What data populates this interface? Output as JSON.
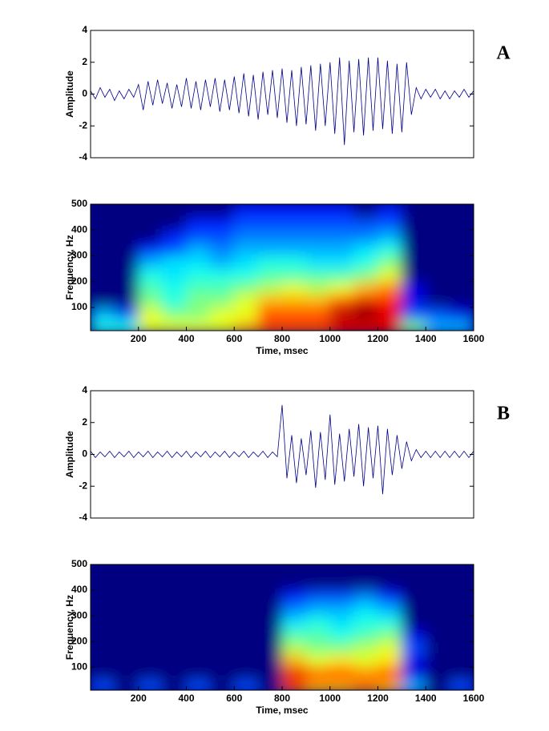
{
  "chart_data": [
    {
      "type": "line",
      "annotation": "A",
      "ylabel": "Amplitude",
      "color": "#00008b",
      "xlim": [
        0,
        1600
      ],
      "ylim": [
        -4,
        4
      ],
      "yticks": [
        -4,
        -2,
        0,
        2,
        4
      ],
      "x": [
        0,
        20,
        40,
        60,
        80,
        100,
        120,
        140,
        160,
        180,
        200,
        220,
        240,
        260,
        280,
        300,
        320,
        340,
        360,
        380,
        400,
        420,
        440,
        460,
        480,
        500,
        520,
        540,
        560,
        580,
        600,
        620,
        640,
        660,
        680,
        700,
        720,
        740,
        760,
        780,
        800,
        820,
        840,
        860,
        880,
        900,
        920,
        940,
        960,
        980,
        1000,
        1020,
        1040,
        1060,
        1080,
        1100,
        1120,
        1140,
        1160,
        1180,
        1200,
        1220,
        1240,
        1260,
        1280,
        1300,
        1320,
        1340,
        1360,
        1380,
        1400,
        1420,
        1440,
        1460,
        1480,
        1500,
        1520,
        1540,
        1560,
        1580,
        1600
      ],
      "values": [
        0.2,
        -0.3,
        0.4,
        -0.2,
        0.3,
        -0.4,
        0.2,
        -0.3,
        0.3,
        -0.2,
        0.6,
        -1.0,
        0.8,
        -0.7,
        0.9,
        -0.6,
        0.7,
        -0.9,
        0.6,
        -0.8,
        1.0,
        -0.9,
        0.8,
        -1.0,
        0.9,
        -0.8,
        1.0,
        -1.1,
        0.9,
        -1.0,
        1.1,
        -1.2,
        1.3,
        -1.4,
        1.2,
        -1.6,
        1.4,
        -1.3,
        1.5,
        -1.5,
        1.6,
        -1.8,
        1.5,
        -2.0,
        1.7,
        -1.9,
        1.8,
        -2.3,
        1.9,
        -2.0,
        2.0,
        -2.5,
        2.3,
        -3.2,
        2.1,
        -2.4,
        2.2,
        -2.6,
        2.3,
        -2.3,
        2.3,
        -2.2,
        2.1,
        -2.5,
        1.9,
        -2.4,
        2.0,
        -1.3,
        0.4,
        -0.3,
        0.3,
        -0.2,
        0.3,
        -0.3,
        0.2,
        -0.3,
        0.2,
        -0.2,
        0.3,
        -0.2,
        0.2
      ]
    },
    {
      "type": "heatmap",
      "colormap": "jet",
      "xlabel": "Time, msec",
      "ylabel": "Frequency, Hz",
      "xlim": [
        0,
        1600
      ],
      "ylim": [
        10,
        500
      ],
      "xticks": [
        200,
        400,
        600,
        800,
        1000,
        1200,
        1400,
        1600
      ],
      "yticks": [
        100,
        200,
        300,
        400,
        500
      ],
      "x": [
        50,
        150,
        250,
        350,
        450,
        550,
        650,
        750,
        850,
        950,
        1050,
        1150,
        1250,
        1350,
        1450,
        1550
      ],
      "y": [
        25,
        75,
        125,
        175,
        225,
        275,
        325,
        375,
        425,
        475
      ],
      "z": [
        [
          0.4,
          0.4,
          0.6,
          0.6,
          0.6,
          0.6,
          0.7,
          0.8,
          0.8,
          0.8,
          0.9,
          0.9,
          0.9,
          0.5,
          0.3,
          0.3
        ],
        [
          0.3,
          0.2,
          0.6,
          0.5,
          0.5,
          0.6,
          0.6,
          0.8,
          0.8,
          0.8,
          0.95,
          1.0,
          0.9,
          0.2,
          0.2,
          0.1
        ],
        [
          0,
          0,
          0.5,
          0.4,
          0.5,
          0.5,
          0.6,
          0.7,
          0.7,
          0.7,
          0.8,
          0.9,
          0.85,
          0.1,
          0,
          0
        ],
        [
          0,
          0,
          0.45,
          0.4,
          0.45,
          0.45,
          0.5,
          0.55,
          0.6,
          0.55,
          0.6,
          0.7,
          0.75,
          0.1,
          0,
          0
        ],
        [
          0,
          0,
          0.4,
          0.35,
          0.4,
          0.4,
          0.4,
          0.45,
          0.45,
          0.45,
          0.45,
          0.5,
          0.6,
          0,
          0,
          0
        ],
        [
          0,
          0,
          0.3,
          0.35,
          0.35,
          0.3,
          0.35,
          0.4,
          0.4,
          0.35,
          0.35,
          0.4,
          0.5,
          0,
          0,
          0
        ],
        [
          0,
          0,
          0.15,
          0.2,
          0.3,
          0.25,
          0.3,
          0.3,
          0.3,
          0.3,
          0.3,
          0.35,
          0.4,
          0,
          0,
          0
        ],
        [
          0,
          0,
          0,
          0.15,
          0.2,
          0.2,
          0.25,
          0.25,
          0.25,
          0.25,
          0.25,
          0.25,
          0.3,
          0,
          0,
          0
        ],
        [
          0,
          0,
          0,
          0,
          0.15,
          0.15,
          0.2,
          0.2,
          0.2,
          0.2,
          0.2,
          0.2,
          0.2,
          0,
          0,
          0
        ],
        [
          0,
          0,
          0,
          0,
          0,
          0,
          0.15,
          0.15,
          0.15,
          0.15,
          0.15,
          0,
          0.15,
          0,
          0,
          0
        ]
      ]
    },
    {
      "type": "line",
      "annotation": "B",
      "ylabel": "Amplitude",
      "color": "#00008b",
      "xlim": [
        0,
        1600
      ],
      "ylim": [
        -4,
        4
      ],
      "yticks": [
        -4,
        -2,
        0,
        2,
        4
      ],
      "x": [
        0,
        20,
        40,
        60,
        80,
        100,
        120,
        140,
        160,
        180,
        200,
        220,
        240,
        260,
        280,
        300,
        320,
        340,
        360,
        380,
        400,
        420,
        440,
        460,
        480,
        500,
        520,
        540,
        560,
        580,
        600,
        620,
        640,
        660,
        680,
        700,
        720,
        740,
        760,
        780,
        800,
        820,
        840,
        860,
        880,
        900,
        920,
        940,
        960,
        980,
        1000,
        1020,
        1040,
        1060,
        1080,
        1100,
        1120,
        1140,
        1160,
        1180,
        1200,
        1220,
        1240,
        1260,
        1280,
        1300,
        1320,
        1340,
        1360,
        1380,
        1400,
        1420,
        1440,
        1460,
        1480,
        1500,
        1520,
        1540,
        1560,
        1580,
        1600
      ],
      "values": [
        0.2,
        -0.2,
        0.15,
        -0.15,
        0.2,
        -0.2,
        0.15,
        -0.15,
        0.2,
        -0.2,
        0.15,
        -0.15,
        0.2,
        -0.2,
        0.15,
        -0.15,
        0.2,
        -0.2,
        0.15,
        -0.15,
        0.2,
        -0.2,
        0.15,
        -0.15,
        0.2,
        -0.2,
        0.15,
        -0.15,
        0.2,
        -0.2,
        0.15,
        -0.15,
        0.2,
        -0.2,
        0.15,
        -0.15,
        0.2,
        -0.2,
        0.15,
        -0.15,
        3.1,
        -1.5,
        1.2,
        -1.8,
        1.0,
        -1.3,
        1.5,
        -2.1,
        1.4,
        -1.6,
        2.5,
        -1.9,
        1.3,
        -1.7,
        1.6,
        -1.4,
        1.9,
        -2.0,
        1.7,
        -1.5,
        1.8,
        -2.5,
        1.6,
        -1.3,
        1.2,
        -0.9,
        0.8,
        -0.4,
        0.3,
        -0.2,
        0.2,
        -0.2,
        0.2,
        -0.2,
        0.2,
        -0.2,
        0.2,
        -0.2,
        0.2,
        -0.2,
        0.2
      ]
    },
    {
      "type": "heatmap",
      "colormap": "jet",
      "xlabel": "Time, msec",
      "ylabel": "Frequency, Hz",
      "xlim": [
        0,
        1600
      ],
      "ylim": [
        10,
        500
      ],
      "xticks": [
        200,
        400,
        600,
        800,
        1000,
        1200,
        1400,
        1600
      ],
      "yticks": [
        100,
        200,
        300,
        400,
        500
      ],
      "x": [
        50,
        150,
        250,
        350,
        450,
        550,
        650,
        750,
        850,
        950,
        1050,
        1150,
        1250,
        1350,
        1450,
        1550
      ],
      "y": [
        25,
        75,
        125,
        175,
        225,
        275,
        325,
        375,
        425,
        475
      ],
      "z": [
        [
          0.2,
          0,
          0.2,
          0,
          0.2,
          0,
          0.2,
          0,
          0.8,
          0.7,
          0.7,
          0.75,
          0.7,
          0.3,
          0,
          0.2
        ],
        [
          0,
          0,
          0,
          0,
          0,
          0,
          0,
          0,
          0.9,
          0.8,
          0.8,
          0.75,
          0.8,
          0.1,
          0,
          0
        ],
        [
          0,
          0,
          0,
          0,
          0,
          0,
          0,
          0,
          0.7,
          0.6,
          0.65,
          0.6,
          0.65,
          0.1,
          0,
          0
        ],
        [
          0,
          0,
          0,
          0,
          0,
          0,
          0,
          0,
          0.55,
          0.5,
          0.5,
          0.55,
          0.6,
          0.2,
          0,
          0
        ],
        [
          0,
          0,
          0,
          0,
          0,
          0,
          0,
          0,
          0.45,
          0.45,
          0.4,
          0.45,
          0.5,
          0.1,
          0,
          0
        ],
        [
          0,
          0,
          0,
          0,
          0,
          0,
          0,
          0,
          0.35,
          0.4,
          0.35,
          0.4,
          0.4,
          0,
          0,
          0
        ],
        [
          0,
          0,
          0,
          0,
          0,
          0,
          0,
          0,
          0.25,
          0.3,
          0.3,
          0.35,
          0.3,
          0,
          0,
          0
        ],
        [
          0,
          0,
          0,
          0,
          0,
          0,
          0,
          0,
          0.15,
          0.2,
          0.2,
          0.25,
          0.15,
          0,
          0,
          0
        ],
        [
          0,
          0,
          0,
          0,
          0,
          0,
          0,
          0,
          0,
          0,
          0,
          0,
          0,
          0,
          0,
          0
        ],
        [
          0,
          0,
          0,
          0,
          0,
          0,
          0,
          0,
          0,
          0,
          0,
          0,
          0,
          0,
          0,
          0
        ]
      ]
    }
  ]
}
